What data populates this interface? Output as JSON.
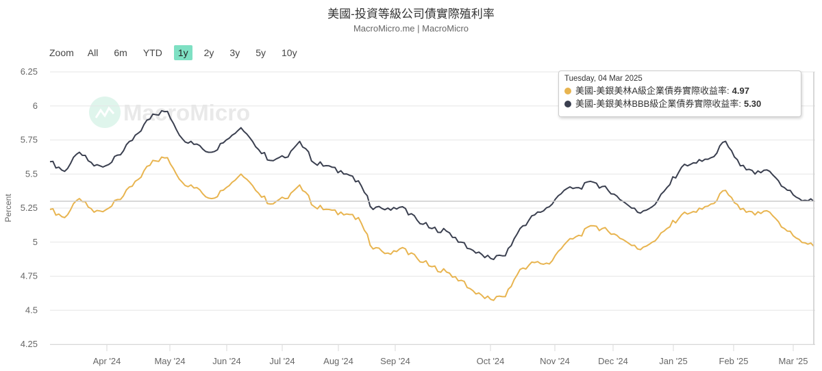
{
  "header": {
    "title": "美國-投資等級公司債實際殖利率",
    "subtitle": "MacroMicro.me | MacroMicro"
  },
  "range_selector": {
    "zoom_label": "Zoom",
    "buttons": [
      {
        "label": "All",
        "active": false
      },
      {
        "label": "6m",
        "active": false
      },
      {
        "label": "YTD",
        "active": false
      },
      {
        "label": "1y",
        "active": true
      },
      {
        "label": "2y",
        "active": false
      },
      {
        "label": "3y",
        "active": false
      },
      {
        "label": "5y",
        "active": false
      },
      {
        "label": "10y",
        "active": false
      }
    ],
    "active_color": "#7ee0c3"
  },
  "watermark": {
    "text": "MacroMicro"
  },
  "tooltip": {
    "date": "Tuesday, 04 Mar 2025",
    "rows": [
      {
        "label": "美國-美銀美林A級企業債券實際收益率:",
        "value": "4.97",
        "color": "#e8b44f"
      },
      {
        "label": "美國-美銀美林BBB級企業債券實際收益率:",
        "value": "5.30",
        "color": "#3a3f4f"
      }
    ]
  },
  "colors": {
    "series_a": "#e8b44f",
    "series_bbb": "#3a3f4f",
    "grid": "#e6e6e6",
    "axis_text": "#666666"
  },
  "chart_data": {
    "type": "line",
    "title": "美國-投資等級公司債實際殖利率",
    "subtitle": "MacroMicro.me | MacroMicro",
    "xlabel": "",
    "ylabel": "Percent",
    "ylim": [
      4.25,
      6.25
    ],
    "yticks": [
      "4.25",
      "4.5",
      "4.75",
      "5",
      "5.25",
      "5.5",
      "5.75",
      "6",
      "6.25"
    ],
    "xticks": [
      "Apr '24",
      "May '24",
      "Jun '24",
      "Jul '24",
      "Aug '24",
      "Sep '24",
      "Oct '24",
      "Nov '24",
      "Dec '24",
      "Jan '25",
      "Feb '25",
      "Mar '25"
    ],
    "grid": true,
    "legend": "tooltip",
    "x": [
      "2024-03-05",
      "2024-03-12",
      "2024-03-19",
      "2024-03-26",
      "2024-04-02",
      "2024-04-09",
      "2024-04-16",
      "2024-04-23",
      "2024-04-30",
      "2024-05-07",
      "2024-05-14",
      "2024-05-21",
      "2024-05-28",
      "2024-06-04",
      "2024-06-11",
      "2024-06-18",
      "2024-06-25",
      "2024-07-02",
      "2024-07-09",
      "2024-07-16",
      "2024-07-23",
      "2024-07-30",
      "2024-08-06",
      "2024-08-13",
      "2024-08-20",
      "2024-08-27",
      "2024-09-03",
      "2024-09-10",
      "2024-09-17",
      "2024-09-24",
      "2024-10-01",
      "2024-10-08",
      "2024-10-15",
      "2024-10-22",
      "2024-10-29",
      "2024-11-05",
      "2024-11-12",
      "2024-11-19",
      "2024-11-26",
      "2024-12-03",
      "2024-12-10",
      "2024-12-17",
      "2024-12-24",
      "2024-12-31",
      "2025-01-07",
      "2025-01-14",
      "2025-01-21",
      "2025-01-28",
      "2025-02-04",
      "2025-02-11",
      "2025-02-18",
      "2025-02-25",
      "2025-03-04"
    ],
    "series": [
      {
        "name": "美國-美銀美林A級企業債券實際收益率",
        "color": "#e8b44f",
        "values": [
          5.24,
          5.18,
          5.32,
          5.22,
          5.25,
          5.34,
          5.46,
          5.6,
          5.62,
          5.44,
          5.4,
          5.32,
          5.4,
          5.5,
          5.38,
          5.28,
          5.32,
          5.42,
          5.26,
          5.24,
          5.2,
          5.18,
          4.95,
          4.92,
          4.96,
          4.88,
          4.82,
          4.78,
          4.72,
          4.62,
          4.58,
          4.6,
          4.8,
          4.85,
          4.84,
          4.98,
          5.05,
          5.12,
          5.08,
          5.02,
          4.95,
          5.0,
          5.1,
          5.2,
          5.22,
          5.28,
          5.38,
          5.24,
          5.2,
          5.22,
          5.1,
          5.02,
          4.97
        ]
      },
      {
        "name": "美國-美銀美林BBB級企業債券實際收益率",
        "color": "#3a3f4f",
        "values": [
          5.59,
          5.52,
          5.66,
          5.56,
          5.57,
          5.67,
          5.8,
          5.94,
          5.96,
          5.76,
          5.72,
          5.66,
          5.75,
          5.84,
          5.7,
          5.6,
          5.62,
          5.74,
          5.58,
          5.56,
          5.5,
          5.45,
          5.24,
          5.25,
          5.26,
          5.16,
          5.1,
          5.08,
          5.0,
          4.92,
          4.88,
          4.9,
          5.1,
          5.2,
          5.26,
          5.38,
          5.4,
          5.44,
          5.38,
          5.3,
          5.22,
          5.26,
          5.4,
          5.55,
          5.58,
          5.62,
          5.74,
          5.56,
          5.5,
          5.52,
          5.4,
          5.32,
          5.3
        ]
      }
    ],
    "crosshair": {
      "x": "2025-03-04",
      "y": 5.3
    }
  }
}
